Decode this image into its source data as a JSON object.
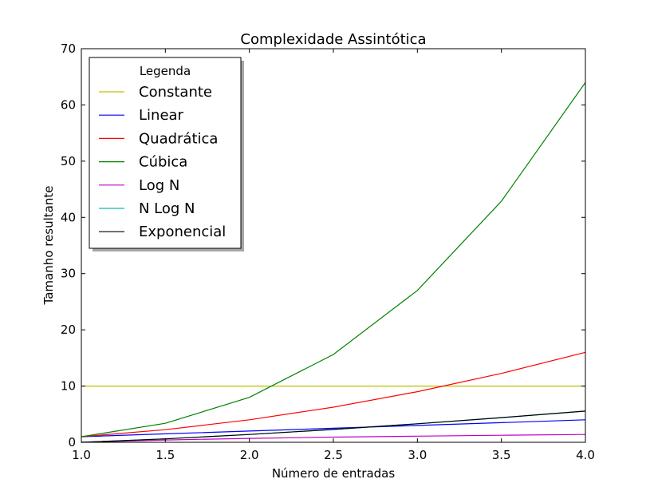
{
  "chart_data": {
    "type": "line",
    "title": "Complexidade Assintótica",
    "xlabel": "Número de entradas",
    "ylabel": "Tamanho resultante",
    "xlim": [
      1.0,
      4.0
    ],
    "ylim": [
      0,
      70
    ],
    "xticks": [
      "1.0",
      "1.5",
      "2.0",
      "2.5",
      "3.0",
      "3.5",
      "4.0"
    ],
    "yticks": [
      "0",
      "10",
      "20",
      "30",
      "40",
      "50",
      "60",
      "70"
    ],
    "x": [
      1.0,
      1.5,
      2.0,
      2.5,
      3.0,
      3.5,
      4.0
    ],
    "grid": false,
    "legend": {
      "title": "Legenda",
      "placement": "top-left"
    },
    "series": [
      {
        "name": "Constante",
        "color": "#bfbf00",
        "values": [
          10,
          10,
          10,
          10,
          10,
          10,
          10
        ]
      },
      {
        "name": "Linear",
        "color": "#0000ff",
        "values": [
          1.0,
          1.5,
          2.0,
          2.5,
          3.0,
          3.5,
          4.0
        ]
      },
      {
        "name": "Quadrática",
        "color": "#ff0000",
        "values": [
          1.0,
          2.25,
          4.0,
          6.25,
          9.0,
          12.25,
          16.0
        ]
      },
      {
        "name": "Cúbica",
        "color": "#008000",
        "values": [
          1.0,
          3.375,
          8.0,
          15.625,
          27.0,
          42.875,
          64.0
        ]
      },
      {
        "name": "Log N",
        "color": "#bf00bf",
        "values": [
          0.0,
          0.405,
          0.693,
          0.916,
          1.099,
          1.253,
          1.386
        ]
      },
      {
        "name": "N Log N",
        "color": "#00bfbf",
        "values": [
          0.0,
          0.608,
          1.386,
          2.291,
          3.296,
          4.385,
          5.545
        ]
      },
      {
        "name": "Exponencial",
        "color": "#000000",
        "values": [
          0.0,
          0.608,
          1.386,
          2.291,
          3.296,
          4.385,
          5.545
        ]
      }
    ]
  }
}
